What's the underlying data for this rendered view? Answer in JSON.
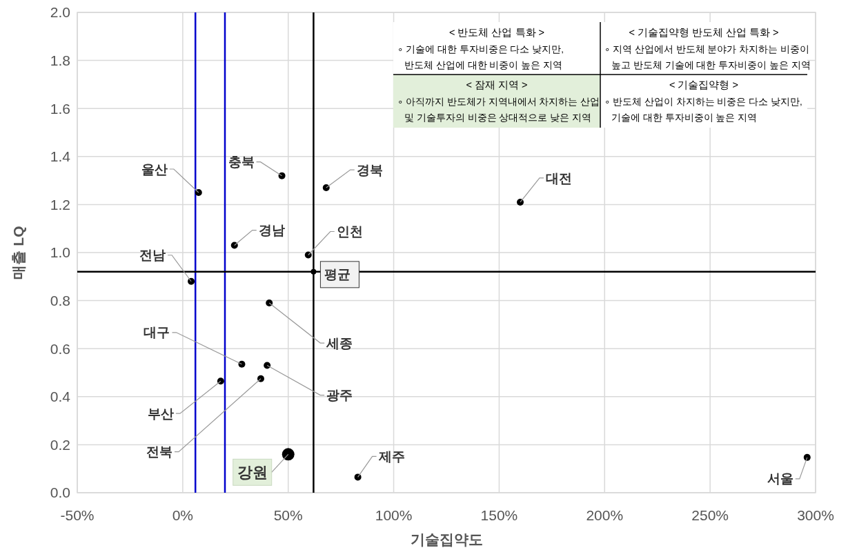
{
  "chart_data": {
    "type": "scatter",
    "xlabel": "기술집약도",
    "ylabel": "매출 LQ",
    "xlim": [
      -50,
      300
    ],
    "xticks": [
      {
        "value": -50,
        "label": "-50%"
      },
      {
        "value": 0,
        "label": "0%"
      },
      {
        "value": 50,
        "label": "50%"
      },
      {
        "value": 100,
        "label": "100%"
      },
      {
        "value": 150,
        "label": "150%"
      },
      {
        "value": 200,
        "label": "200%"
      },
      {
        "value": 250,
        "label": "250%"
      },
      {
        "value": 300,
        "label": "300%"
      }
    ],
    "ylim": [
      0,
      2
    ],
    "yticks": [
      {
        "value": 0,
        "label": "0.0"
      },
      {
        "value": 0.2,
        "label": "0.2"
      },
      {
        "value": 0.4,
        "label": "0.4"
      },
      {
        "value": 0.6,
        "label": "0.6"
      },
      {
        "value": 0.8,
        "label": "0.8"
      },
      {
        "value": 1,
        "label": "1.0"
      },
      {
        "value": 1.2,
        "label": "1.2"
      },
      {
        "value": 1.4,
        "label": "1.4"
      },
      {
        "value": 1.6,
        "label": "1.6"
      },
      {
        "value": 1.8,
        "label": "1.8"
      },
      {
        "value": 2,
        "label": "2.0"
      }
    ],
    "grid": true,
    "marker": "circle",
    "series": [
      {
        "color": "#000000",
        "x": [
          7.5,
          47,
          68,
          160,
          24.5,
          59.5,
          4,
          41,
          28,
          40,
          18,
          37,
          83,
          296
        ],
        "values": [
          1.25,
          1.32,
          1.27,
          1.21,
          1.03,
          0.99,
          0.88,
          0.79,
          0.535,
          0.53,
          0.465,
          0.475,
          0.065,
          0.147
        ]
      },
      {
        "color": "#000000",
        "x": [
          50
        ],
        "values": [
          0.16
        ]
      }
    ],
    "ref_lines": [
      {
        "axis": "x",
        "value": 6,
        "color": "#0000cc"
      },
      {
        "axis": "x",
        "value": 20,
        "color": "#0000cc"
      },
      {
        "axis": "x",
        "value": 62,
        "color": "#000000"
      },
      {
        "axis": "y",
        "value": 0.92,
        "color": "#000000"
      }
    ],
    "annotations": [
      "< 반도체 산업 특화 >",
      "∘ 기술에 대한 투자비중은 다소 낮지만,\n반도체 산업에 대한 비중이 높은 지역",
      "< 기술집약형 반도체 산업 특화 >",
      "∘ 지역 산업에서 반도체 분야가 차지하는 비중이\n높고 반도체 기술에 대한 투자비중이 높은 지역",
      "< 잠재 지역 >",
      "∘ 아직까지 반도체가 지역내에서 차지하는 산업\n및 기술투자의 비중은 상대적으로 낮은 지역",
      "< 기술집약형 >",
      "∘ 반도체 산업이 차지하는 비중은 다소 낮지만,\n기술에 대한 투자비중이 높은 지역",
      {
        "text": "울산",
        "x": 7.5,
        "y": 1.25
      },
      {
        "text": "충북",
        "x": 47,
        "y": 1.32
      },
      {
        "text": "경북",
        "x": 68,
        "y": 1.27
      },
      {
        "text": "대전",
        "x": 160,
        "y": 1.21
      },
      {
        "text": "경남",
        "x": 24.5,
        "y": 1.03
      },
      {
        "text": "인천",
        "x": 59.5,
        "y": 0.99
      },
      {
        "text": "전남",
        "x": 4,
        "y": 0.88
      },
      {
        "text": "세종",
        "x": 41,
        "y": 0.79
      },
      {
        "text": "대구",
        "x": 28,
        "y": 0.535
      },
      {
        "text": "광주",
        "x": 40,
        "y": 0.53
      },
      {
        "text": "부산",
        "x": 18,
        "y": 0.465
      },
      {
        "text": "전북",
        "x": 37,
        "y": 0.475
      },
      {
        "text": "제주",
        "x": 83,
        "y": 0.065
      },
      {
        "text": "서울",
        "x": 296,
        "y": 0.147
      },
      {
        "text": "강원",
        "x": 50,
        "y": 0.16
      },
      {
        "text": "평균",
        "x": 62,
        "y": 0.92
      }
    ]
  }
}
